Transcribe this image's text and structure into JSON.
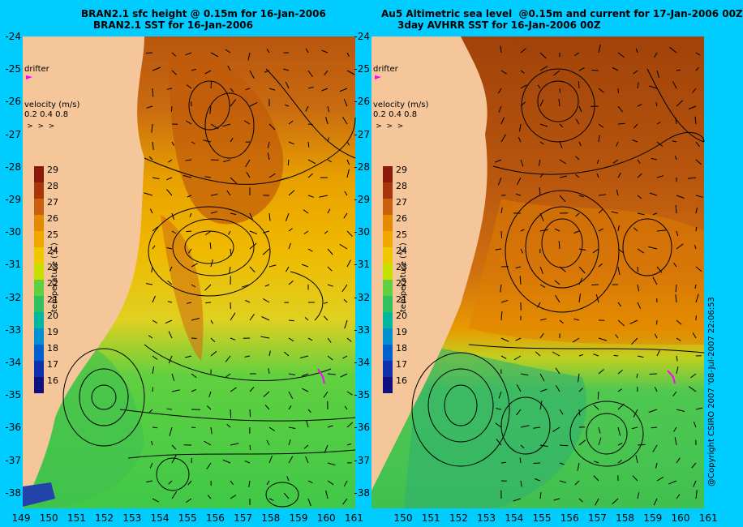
{
  "left_panel": {
    "title_line1": "BRAN2.1 sfc height @ 0.15m for 16-Jan-2006",
    "title_line2": "BRAN2.1 SST for 16-Jan-2006"
  },
  "right_panel": {
    "title_line1": "Au5 Altimetric sea level  @0.15m and current for 17-Jan-2006 00Z",
    "title_line2": "3day AVHRR SST for 16-Jan-2006 00Z"
  },
  "lat_labels": [
    "-24",
    "-25",
    "-26",
    "-27",
    "-28",
    "-29",
    "-30",
    "-31",
    "-32",
    "-33",
    "-34",
    "-35",
    "-36",
    "-37",
    "-38"
  ],
  "lon_labels_left": [
    "149",
    "150",
    "151",
    "152",
    "153",
    "154",
    "155",
    "156",
    "157",
    "158",
    "159",
    "160",
    "161"
  ],
  "lon_labels_right": [
    "150",
    "151",
    "152",
    "153",
    "154",
    "155",
    "156",
    "157",
    "158",
    "159",
    "160",
    "161"
  ],
  "legend": {
    "drifter": "drifter",
    "velocity_title": "velocity (m/s)",
    "velocity_values": "0.2 0.4 0.8",
    "temperature_label": "temperature (°C)",
    "colorbar_ticks": [
      "29",
      "28",
      "27",
      "26",
      "25",
      "24",
      "23",
      "22",
      "21",
      "20",
      "19",
      "18",
      "17",
      "16"
    ]
  },
  "colors": {
    "background": "#00ccff",
    "land": "#f5c69a",
    "warm": "#a0420a",
    "mid": "#e8a000",
    "cool": "#3cc840"
  },
  "copyright": "@Copyright CSIRO 2007 '08-Jul-2007 22:06:53"
}
